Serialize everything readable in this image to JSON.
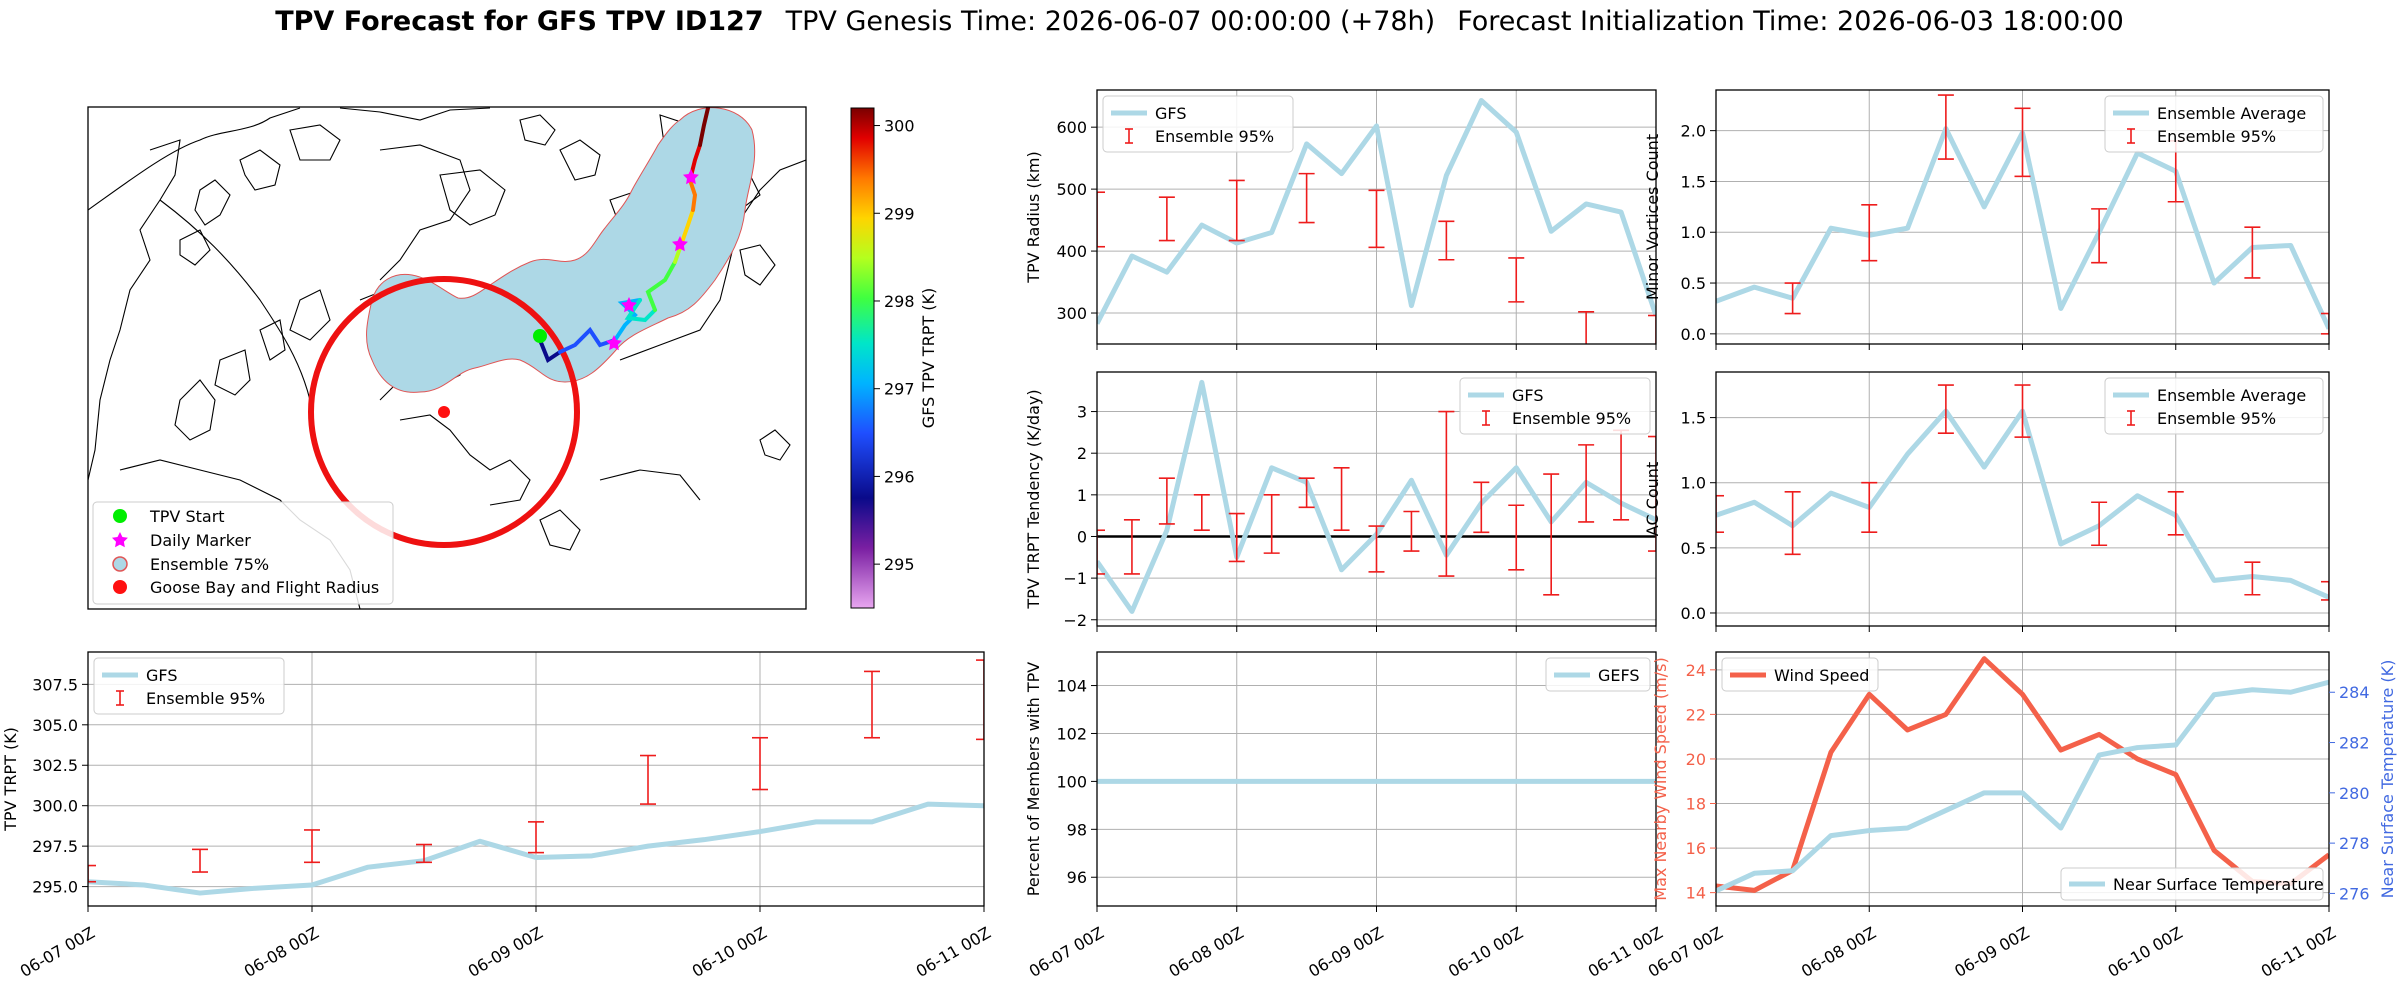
{
  "header": {
    "title_bold": "TPV Forecast for GFS TPV ID127",
    "genesis": "TPV Genesis Time: 2026-06-07 00:00:00 (+78h)",
    "init": "Forecast Initialization Time: 2026-06-03 18:00:00"
  },
  "time_ticks": [
    "06-07 00Z",
    "06-08 00Z",
    "06-09 00Z",
    "06-10 00Z",
    "06-11 00Z"
  ],
  "map": {
    "legend": [
      "TPV Start",
      "Daily Marker",
      "Ensemble 75%",
      "Goose Bay and Flight Radius"
    ],
    "colorbar": {
      "label": "GFS TPV TRPT (K)",
      "ticks": [
        300,
        299,
        298,
        297,
        296,
        295
      ],
      "range": [
        294.5,
        300.2
      ]
    },
    "colors": {
      "start": "#00ee00",
      "daily": "#ff00ff",
      "ensemble": "#add8e6",
      "goose": "#ff1010",
      "radius": "#ee1111"
    }
  },
  "chart_data": [
    {
      "id": "radius",
      "type": "line",
      "ylabel": "TPV Radius (km)",
      "legend": [
        "GFS",
        "Ensemble 95%"
      ],
      "ylim": [
        250,
        660
      ],
      "yticks": [
        300,
        400,
        500,
        600
      ],
      "x": [
        0,
        0.25,
        0.5,
        0.75,
        1,
        1.25,
        1.5,
        1.75,
        2,
        2.25,
        2.5,
        2.75,
        3,
        3.25,
        3.5,
        3.75,
        4
      ],
      "series": [
        {
          "name": "GFS",
          "values": [
            283,
            392,
            366,
            442,
            413,
            430,
            573,
            525,
            602,
            312,
            522,
            643,
            592,
            432,
            476,
            463,
            296
          ]
        }
      ],
      "error_bars": [
        {
          "x": 0,
          "lo": 407,
          "hi": 495
        },
        {
          "x": 0.5,
          "lo": 417,
          "hi": 487
        },
        {
          "x": 1,
          "lo": 417,
          "hi": 514
        },
        {
          "x": 1.5,
          "lo": 446,
          "hi": 525
        },
        {
          "x": 2,
          "lo": 406,
          "hi": 498
        },
        {
          "x": 2.5,
          "lo": 386,
          "hi": 448
        },
        {
          "x": 3,
          "lo": 318,
          "hi": 389
        },
        {
          "x": 3.5,
          "lo": 246,
          "hi": 302
        },
        {
          "x": 4,
          "lo": 235,
          "hi": 296
        }
      ]
    },
    {
      "id": "minor",
      "type": "line",
      "ylabel": "Minor Vortices Count",
      "legend": [
        "Ensemble Average",
        "Ensemble 95%"
      ],
      "ylim": [
        -0.1,
        2.4
      ],
      "yticks": [
        "0.0",
        "0.5",
        "1.0",
        "1.5",
        "2.0"
      ],
      "x": [
        0,
        0.25,
        0.5,
        0.75,
        1,
        1.25,
        1.5,
        1.75,
        2,
        2.25,
        2.5,
        2.75,
        3,
        3.25,
        3.5,
        3.75,
        4
      ],
      "series": [
        {
          "name": "Ensemble Average",
          "values": [
            0.32,
            0.46,
            0.35,
            1.04,
            0.97,
            1.04,
            2.02,
            1.25,
            1.98,
            0.25,
            1.0,
            1.78,
            1.6,
            0.5,
            0.85,
            0.87,
            0.05
          ]
        }
      ],
      "error_bars": [
        {
          "x": 0.5,
          "lo": 0.2,
          "hi": 0.5
        },
        {
          "x": 1,
          "lo": 0.72,
          "hi": 1.27
        },
        {
          "x": 1.5,
          "lo": 1.72,
          "hi": 2.35
        },
        {
          "x": 2,
          "lo": 1.55,
          "hi": 2.22
        },
        {
          "x": 2.5,
          "lo": 0.7,
          "hi": 1.23
        },
        {
          "x": 3,
          "lo": 1.3,
          "hi": 1.9
        },
        {
          "x": 3.5,
          "lo": 0.55,
          "hi": 1.05
        },
        {
          "x": 4,
          "lo": 0.0,
          "hi": 0.2
        }
      ]
    },
    {
      "id": "tendency",
      "type": "line",
      "ylabel": "TPV TRPT Tendency (K/day)",
      "legend": [
        "GFS",
        "Ensemble 95%"
      ],
      "ylim": [
        -2.15,
        3.95
      ],
      "yticks": [
        "−2",
        "−1",
        "0",
        "1",
        "2",
        "3"
      ],
      "yticks_values": [
        -2,
        -1,
        0,
        1,
        2,
        3
      ],
      "zero_line": true,
      "x": [
        0,
        0.25,
        0.5,
        0.75,
        1,
        1.25,
        1.5,
        1.75,
        2,
        2.25,
        2.5,
        2.75,
        3,
        3.25,
        3.5,
        3.75,
        4
      ],
      "series": [
        {
          "name": "GFS",
          "values": [
            -0.6,
            -1.8,
            0.15,
            3.7,
            -0.5,
            1.65,
            1.3,
            -0.8,
            0.05,
            1.35,
            -0.45,
            0.8,
            1.65,
            0.35,
            1.3,
            0.8,
            0.4
          ]
        }
      ],
      "error_bars": [
        {
          "x": 0,
          "lo": -0.9,
          "hi": 0.15
        },
        {
          "x": 0.25,
          "lo": -0.9,
          "hi": 0.4
        },
        {
          "x": 0.5,
          "lo": 0.3,
          "hi": 1.4
        },
        {
          "x": 0.75,
          "lo": 0.15,
          "hi": 1.0
        },
        {
          "x": 1,
          "lo": -0.6,
          "hi": 0.55
        },
        {
          "x": 1.25,
          "lo": -0.4,
          "hi": 1.0
        },
        {
          "x": 1.5,
          "lo": 0.7,
          "hi": 1.4
        },
        {
          "x": 1.75,
          "lo": 0.15,
          "hi": 1.65
        },
        {
          "x": 2,
          "lo": -0.85,
          "hi": 0.25
        },
        {
          "x": 2.25,
          "lo": -0.35,
          "hi": 0.6
        },
        {
          "x": 2.5,
          "lo": -0.95,
          "hi": 3.0
        },
        {
          "x": 2.75,
          "lo": 0.1,
          "hi": 1.3
        },
        {
          "x": 3,
          "lo": -0.8,
          "hi": 0.75
        },
        {
          "x": 3.25,
          "lo": -1.4,
          "hi": 1.5
        },
        {
          "x": 3.5,
          "lo": 0.35,
          "hi": 2.2
        },
        {
          "x": 3.75,
          "lo": 0.4,
          "hi": 2.55
        },
        {
          "x": 4,
          "lo": -0.35,
          "hi": 2.4
        }
      ]
    },
    {
      "id": "ac",
      "type": "line",
      "ylabel": "AC Count",
      "legend": [
        "Ensemble Average",
        "Ensemble 95%"
      ],
      "ylim": [
        -0.1,
        1.85
      ],
      "yticks": [
        "0.0",
        "0.5",
        "1.0",
        "1.5"
      ],
      "x": [
        0,
        0.25,
        0.5,
        0.75,
        1,
        1.25,
        1.5,
        1.75,
        2,
        2.25,
        2.5,
        2.75,
        3,
        3.25,
        3.5,
        3.75,
        4
      ],
      "series": [
        {
          "name": "Ensemble Average",
          "values": [
            0.75,
            0.85,
            0.67,
            0.92,
            0.81,
            1.22,
            1.55,
            1.12,
            1.55,
            0.53,
            0.67,
            0.9,
            0.75,
            0.25,
            0.28,
            0.25,
            0.12
          ]
        }
      ],
      "error_bars": [
        {
          "x": 0,
          "lo": 0.62,
          "hi": 0.9
        },
        {
          "x": 0.5,
          "lo": 0.45,
          "hi": 0.93
        },
        {
          "x": 1,
          "lo": 0.62,
          "hi": 1.0
        },
        {
          "x": 1.5,
          "lo": 1.38,
          "hi": 1.75
        },
        {
          "x": 2,
          "lo": 1.35,
          "hi": 1.75
        },
        {
          "x": 2.5,
          "lo": 0.52,
          "hi": 0.85
        },
        {
          "x": 3,
          "lo": 0.6,
          "hi": 0.93
        },
        {
          "x": 3.5,
          "lo": 0.14,
          "hi": 0.39
        },
        {
          "x": 4,
          "lo": 0.1,
          "hi": 0.24
        }
      ]
    },
    {
      "id": "trpt",
      "type": "line",
      "ylabel": "TPV TRPT (K)",
      "legend": [
        "GFS",
        "Ensemble 95%"
      ],
      "ylim": [
        293.8,
        309.5
      ],
      "yticks": [
        "295.0",
        "297.5",
        "300.0",
        "302.5",
        "305.0",
        "307.5"
      ],
      "yticks_values": [
        295,
        297.5,
        300,
        302.5,
        305,
        307.5
      ],
      "x": [
        0,
        0.25,
        0.5,
        0.75,
        1,
        1.25,
        1.5,
        1.75,
        2,
        2.25,
        2.5,
        2.75,
        3,
        3.25,
        3.5,
        3.75,
        4
      ],
      "series": [
        {
          "name": "GFS",
          "values": [
            295.3,
            295.1,
            294.6,
            294.9,
            295.1,
            296.2,
            296.6,
            297.8,
            296.8,
            296.9,
            297.5,
            297.9,
            298.4,
            299.0,
            299.0,
            300.1,
            300.0
          ]
        }
      ],
      "error_bars": [
        {
          "x": 0,
          "lo": 295.3,
          "hi": 296.3
        },
        {
          "x": 0.5,
          "lo": 295.9,
          "hi": 297.3
        },
        {
          "x": 1,
          "lo": 296.5,
          "hi": 298.5
        },
        {
          "x": 1.5,
          "lo": 296.5,
          "hi": 297.6
        },
        {
          "x": 2,
          "lo": 297.1,
          "hi": 299.0
        },
        {
          "x": 2.5,
          "lo": 300.1,
          "hi": 303.1
        },
        {
          "x": 3,
          "lo": 301.0,
          "hi": 304.2
        },
        {
          "x": 3.5,
          "lo": 304.2,
          "hi": 308.3
        },
        {
          "x": 4,
          "lo": 304.1,
          "hi": 309.0
        }
      ]
    },
    {
      "id": "percent",
      "type": "line",
      "ylabel": "Percent of Members with TPV",
      "legend": [
        "GEFS"
      ],
      "ylim": [
        94.8,
        105.4
      ],
      "yticks": [
        "96",
        "98",
        "100",
        "102",
        "104"
      ],
      "x": [
        0,
        4
      ],
      "series": [
        {
          "name": "GEFS",
          "values": [
            100,
            100
          ]
        }
      ]
    },
    {
      "id": "wind",
      "type": "line",
      "ylabel": "Max Nearby Wind Speed (m/s)",
      "ylabel_right": "Near Surface Temperature (K)",
      "legend": [
        "Wind Speed"
      ],
      "legend_right": [
        "Near Surface Temperature"
      ],
      "ylim": [
        13.4,
        24.8
      ],
      "yticks": [
        "14",
        "16",
        "18",
        "20",
        "22",
        "24"
      ],
      "ylim_right": [
        275.5,
        285.6
      ],
      "yticks_right": [
        "276",
        "278",
        "280",
        "282",
        "284"
      ],
      "x": [
        0,
        0.25,
        0.5,
        0.75,
        1,
        1.25,
        1.5,
        1.75,
        2,
        2.25,
        2.5,
        2.75,
        3,
        3.25,
        3.5,
        3.75,
        4
      ],
      "series": [
        {
          "name": "Wind Speed",
          "axis": "left",
          "values": [
            14.3,
            14.1,
            15.0,
            20.3,
            22.9,
            21.3,
            22.0,
            24.5,
            22.9,
            20.4,
            21.1,
            20.0,
            19.3,
            15.9,
            14.5,
            14.4,
            15.7
          ]
        },
        {
          "name": "Near Surface Temperature",
          "axis": "right",
          "values": [
            276.1,
            276.8,
            276.9,
            278.3,
            278.5,
            278.6,
            279.3,
            280.0,
            280.0,
            278.6,
            281.5,
            281.8,
            281.9,
            283.9,
            284.1,
            284.0,
            284.4
          ]
        }
      ],
      "colors": {
        "left": "#f4614a",
        "right": "#4169e1"
      }
    }
  ],
  "colors": {
    "line": "#add8e6",
    "error": "#ee1c1c"
  }
}
